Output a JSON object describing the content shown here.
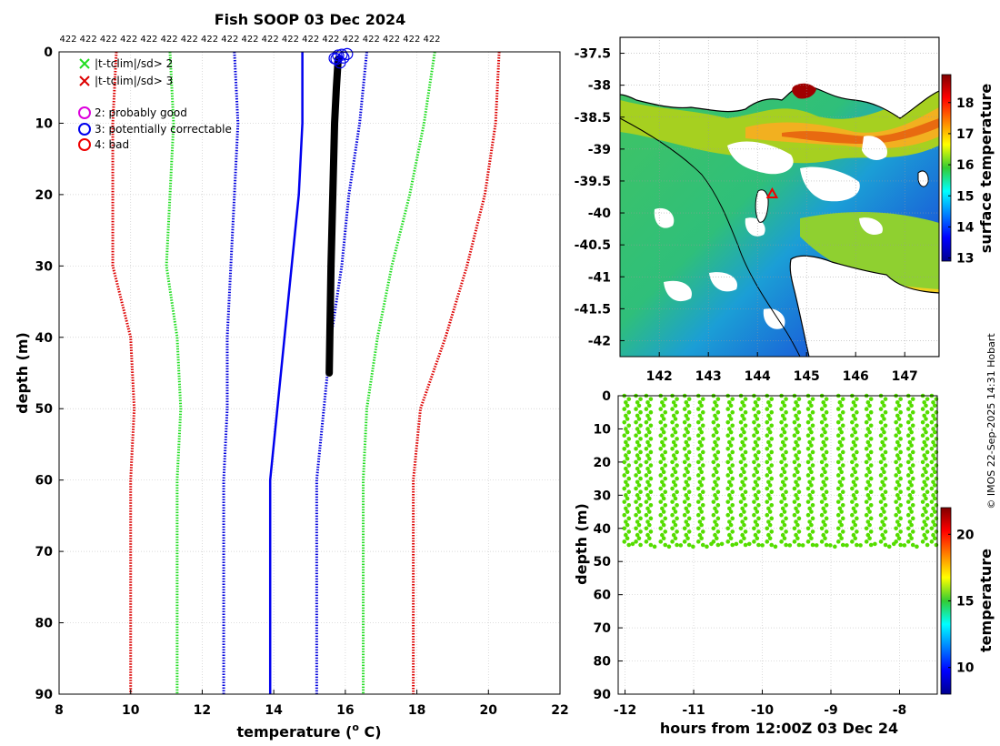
{
  "chart_data": [
    {
      "type": "line",
      "title": "Fish SOOP 03 Dec 2024",
      "top_annotation": [
        "422",
        "422",
        "422",
        "422",
        "422",
        "422",
        "422",
        "422",
        "422",
        "422",
        "422",
        "422",
        "422",
        "422",
        "422",
        "422",
        "422",
        "422",
        "422"
      ],
      "xlabel": "temperature (° C)",
      "xlabel_main": "temperature (",
      "xlabel_sup": "o",
      "xlabel_end": " C)",
      "ylabel": "depth (m)",
      "xlim": [
        8,
        22
      ],
      "ylim": [
        0,
        90
      ],
      "xticks": [
        "8",
        "10",
        "12",
        "14",
        "16",
        "18",
        "20",
        "22"
      ],
      "yticks": [
        "0",
        "10",
        "20",
        "30",
        "40",
        "50",
        "60",
        "70",
        "80",
        "90"
      ],
      "legend": [
        {
          "label": "|t-tclim|/sd> 2",
          "marker": "x",
          "color": "#22dd22"
        },
        {
          "label": "|t-tclim|/sd> 3",
          "marker": "x",
          "color": "#dd0000"
        },
        {
          "label": "2: probably good",
          "marker": "o",
          "color": "#dd00dd"
        },
        {
          "label": "3: potentially correctable",
          "marker": "o",
          "color": "#0000ee"
        },
        {
          "label": "4: bad",
          "marker": "o",
          "color": "#ee0000"
        }
      ],
      "series": [
        {
          "name": "clim -3sd",
          "style": "dotted",
          "color": "#dd0000",
          "temperature": [
            9.6,
            9.5,
            9.5,
            9.5,
            10.0,
            10.1,
            10.0,
            10.0,
            10.0,
            10.0
          ],
          "depth": [
            0,
            10,
            20,
            30,
            40,
            50,
            60,
            70,
            80,
            90
          ]
        },
        {
          "name": "clim -2sd",
          "style": "dotted",
          "color": "#22dd22",
          "temperature": [
            11.1,
            11.2,
            11.1,
            11.0,
            11.3,
            11.4,
            11.3,
            11.3,
            11.3,
            11.3
          ],
          "depth": [
            0,
            10,
            20,
            30,
            40,
            50,
            60,
            70,
            80,
            90
          ]
        },
        {
          "name": "clim -1sd",
          "style": "dotted",
          "color": "#0000dd",
          "temperature": [
            12.9,
            13.0,
            12.9,
            12.8,
            12.7,
            12.7,
            12.6,
            12.6,
            12.6,
            12.6
          ],
          "depth": [
            0,
            10,
            20,
            30,
            40,
            50,
            60,
            70,
            80,
            90
          ]
        },
        {
          "name": "clim mean",
          "style": "solid",
          "color": "#0000ee",
          "temperature": [
            14.8,
            14.8,
            14.7,
            14.5,
            14.3,
            14.1,
            13.9,
            13.9,
            13.9,
            13.9
          ],
          "depth": [
            0,
            10,
            20,
            30,
            40,
            50,
            60,
            70,
            80,
            90
          ]
        },
        {
          "name": "clim +1sd",
          "style": "dotted",
          "color": "#0000dd",
          "temperature": [
            16.6,
            16.4,
            16.1,
            15.9,
            15.6,
            15.4,
            15.2,
            15.2,
            15.2,
            15.2
          ],
          "depth": [
            0,
            10,
            20,
            30,
            40,
            50,
            60,
            70,
            80,
            90
          ]
        },
        {
          "name": "clim +2sd",
          "style": "dotted",
          "color": "#22dd22",
          "temperature": [
            18.5,
            18.2,
            17.8,
            17.3,
            16.9,
            16.6,
            16.5,
            16.5,
            16.5,
            16.5
          ],
          "depth": [
            0,
            10,
            20,
            30,
            40,
            50,
            60,
            70,
            80,
            90
          ]
        },
        {
          "name": "clim +3sd",
          "style": "dotted",
          "color": "#dd0000",
          "temperature": [
            20.3,
            20.2,
            19.9,
            19.4,
            18.8,
            18.1,
            17.9,
            17.9,
            17.9,
            17.9
          ],
          "depth": [
            0,
            10,
            20,
            30,
            40,
            50,
            60,
            70,
            80,
            90
          ]
        },
        {
          "name": "observed profiles",
          "style": "solid",
          "color": "#000000",
          "temperature": [
            15.8,
            15.75,
            15.7,
            15.65,
            15.6,
            15.55
          ],
          "depth": [
            1,
            5,
            10,
            20,
            30,
            45
          ]
        }
      ],
      "flagged_points": {
        "color": "#0000ee",
        "temperature": [
          15.8,
          15.95,
          15.75,
          16.05,
          15.85,
          15.7,
          15.9
        ],
        "depth": [
          0.5,
          0.8,
          1.0,
          0.3,
          1.5,
          0.9,
          0.4
        ]
      }
    },
    {
      "type": "heatmap",
      "xlim": [
        141.2,
        147.7
      ],
      "ylim": [
        -42.25,
        -37.25
      ],
      "xticks": [
        "142",
        "143",
        "144",
        "145",
        "146",
        "147"
      ],
      "yticks": [
        "-37.5",
        "-38",
        "-38.5",
        "-39",
        "-39.5",
        "-40",
        "-40.5",
        "-41",
        "-41.5",
        "-42"
      ],
      "colorbar_label": "surface temperature",
      "colorbar_ticks": [
        "13",
        "14",
        "15",
        "16",
        "17",
        "18"
      ],
      "colorbar_range": [
        12.9,
        18.9
      ],
      "marker": {
        "lon": 144.3,
        "lat": -39.7,
        "symbol": "triangle",
        "color": "#ee0000"
      }
    },
    {
      "type": "scatter",
      "xlabel": "hours from 12:00Z 03 Dec 24",
      "ylabel": "depth (m)",
      "xlim": [
        -12.1,
        -7.45
      ],
      "ylim": [
        0,
        90
      ],
      "xticks": [
        "-12",
        "-11",
        "-10",
        "-9",
        "-8"
      ],
      "yticks": [
        "0",
        "10",
        "20",
        "30",
        "40",
        "50",
        "60",
        "70",
        "80",
        "90"
      ],
      "colorbar_label": "temperature",
      "colorbar_ticks": [
        "10",
        "15",
        "20"
      ],
      "colorbar_range": [
        8,
        22
      ],
      "point_color": "#55dd00",
      "profile_hours": [
        -12.0,
        -11.83,
        -11.68,
        -11.47,
        -11.3,
        -11.12,
        -10.92,
        -10.7,
        -10.49,
        -10.3,
        -10.11,
        -9.92,
        -9.71,
        -9.52,
        -9.32,
        -9.12,
        -8.88,
        -8.68,
        -8.47,
        -8.26,
        -8.04,
        -7.86,
        -7.65,
        -7.52
      ],
      "max_depth": 45.5,
      "min_depth": 0
    }
  ],
  "credit": "© IMOS 22-Sep-2025 14:31 Hobart"
}
